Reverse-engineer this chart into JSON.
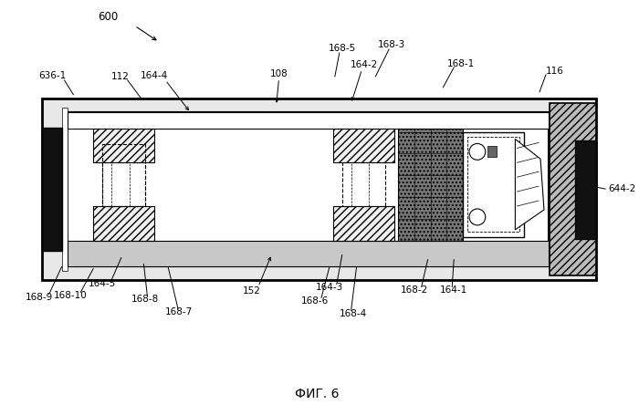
{
  "title": "ФИГ. 6",
  "background_color": "#ffffff",
  "fig_width": 7.0,
  "fig_height": 4.55,
  "dpi": 100
}
